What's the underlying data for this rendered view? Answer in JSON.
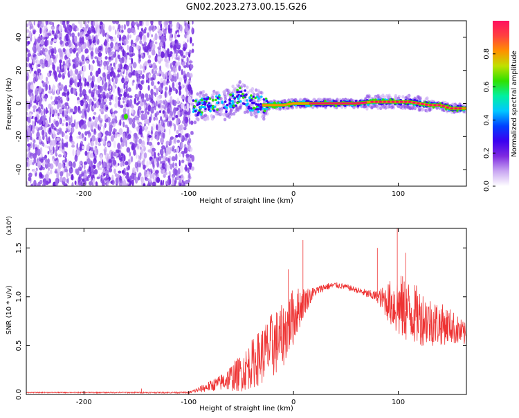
{
  "title": "GN02.2023.273.00.15.G26",
  "chart_data": [
    {
      "type": "heatmap",
      "xlabel": "Height of straight line (km)",
      "ylabel": "Frequency (Hz)",
      "xlim": [
        -255,
        165
      ],
      "ylim": [
        -50,
        50
      ],
      "xticks": [
        -200,
        -100,
        0,
        100
      ],
      "yticks": [
        -40,
        -20,
        0,
        20,
        40
      ],
      "noise_region_x": [
        -255,
        -96
      ],
      "ridge": {
        "x": [
          -96,
          -90,
          -80,
          -72,
          -65,
          -58,
          -50,
          -45,
          -40,
          -35,
          -30,
          -20,
          -10,
          0,
          20,
          40,
          60,
          75,
          90,
          100,
          110,
          120,
          130,
          140,
          150,
          165
        ],
        "y": [
          -3,
          -2,
          -1,
          1,
          -1,
          2,
          5,
          3,
          0,
          0,
          -1,
          -1,
          -1,
          0,
          0,
          0,
          0,
          1,
          1,
          1,
          1,
          0,
          -1,
          -1,
          -3,
          -3
        ]
      },
      "colorbar": {
        "label": "Normalized spectral amplitude",
        "range": [
          0,
          1
        ],
        "ticks": [
          0.0,
          0.2,
          0.4,
          0.6,
          0.8
        ],
        "colors": [
          "#ffffff",
          "#c9a6f2",
          "#7f2be0",
          "#3b00f0",
          "#0040ff",
          "#00c8ff",
          "#00f0a0",
          "#30e000",
          "#c0e000",
          "#ff9000",
          "#ff4040",
          "#ff1060"
        ]
      }
    },
    {
      "type": "line",
      "xlabel": "Height of straight line (km)",
      "ylabel": "SNR (10 * v/v)",
      "multiplier": "(x10⁴)",
      "xlim": [
        -255,
        165
      ],
      "ylim": [
        0,
        1.7
      ],
      "xticks": [
        -200,
        -100,
        0,
        100
      ],
      "yticks": [
        0.0,
        0.5,
        1.0,
        1.5
      ],
      "color": "#ee3333",
      "envelope": {
        "x": [
          -255,
          -200,
          -150,
          -100,
          -90,
          -70,
          -50,
          -30,
          -20,
          -10,
          0,
          10,
          20,
          30,
          40,
          50,
          60,
          70,
          80,
          90,
          100,
          110,
          120,
          130,
          140,
          150,
          165
        ],
        "y": [
          0.02,
          0.02,
          0.02,
          0.02,
          0.05,
          0.12,
          0.22,
          0.4,
          0.5,
          0.6,
          0.8,
          0.95,
          1.05,
          1.1,
          1.12,
          1.1,
          1.07,
          1.03,
          1.0,
          0.95,
          0.9,
          0.85,
          0.8,
          0.75,
          0.72,
          0.7,
          0.6
        ]
      },
      "noise": {
        "x": [
          -255,
          -100,
          -70,
          -40,
          -20,
          0,
          10,
          20,
          40,
          60,
          80,
          90,
          100,
          120,
          140,
          165
        ],
        "amplitude": [
          0.005,
          0.008,
          0.08,
          0.25,
          0.35,
          0.3,
          0.15,
          0.05,
          0.03,
          0.03,
          0.06,
          0.2,
          0.35,
          0.3,
          0.22,
          0.12
        ]
      },
      "spikes": [
        {
          "x": -145,
          "y": 0.06
        },
        {
          "x": -5,
          "y": 1.28
        },
        {
          "x": 9,
          "y": 1.58
        },
        {
          "x": 80,
          "y": 1.5
        },
        {
          "x": 99,
          "y": 1.7
        },
        {
          "x": 107,
          "y": 1.45
        }
      ]
    }
  ]
}
